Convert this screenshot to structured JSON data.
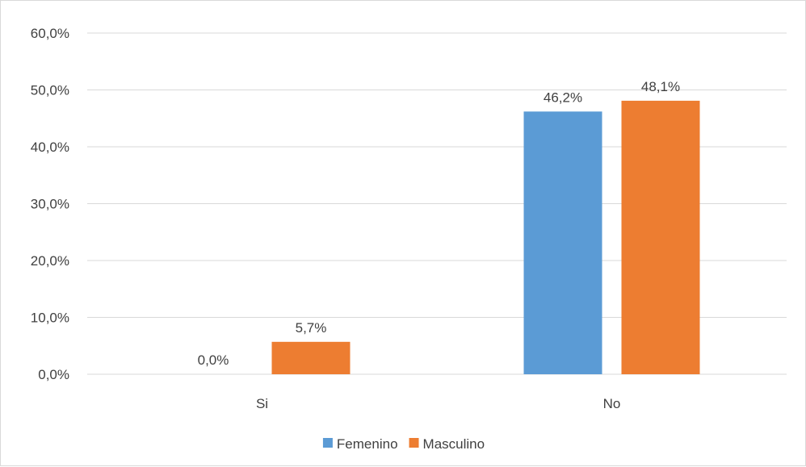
{
  "chart_data": {
    "type": "bar",
    "categories": [
      "Si",
      "No"
    ],
    "series": [
      {
        "name": "Femenino",
        "values": [
          0.0,
          46.2
        ],
        "color": "#5b9bd5"
      },
      {
        "name": "Masculino",
        "values": [
          5.7,
          48.1
        ],
        "color": "#ed7d31"
      }
    ],
    "data_labels": [
      [
        "0,0%",
        "46,2%"
      ],
      [
        "5,7%",
        "48,1%"
      ]
    ],
    "y_ticks": [
      0,
      10,
      20,
      30,
      40,
      50,
      60
    ],
    "y_tick_labels": [
      "0,0%",
      "10,0%",
      "20,0%",
      "30,0%",
      "40,0%",
      "50,0%",
      "60,0%"
    ],
    "ylim": [
      0,
      60
    ],
    "title": "",
    "xlabel": "",
    "ylabel": "",
    "grid": true,
    "legend_position": "bottom",
    "gridline_color": "#d9d9d9"
  }
}
